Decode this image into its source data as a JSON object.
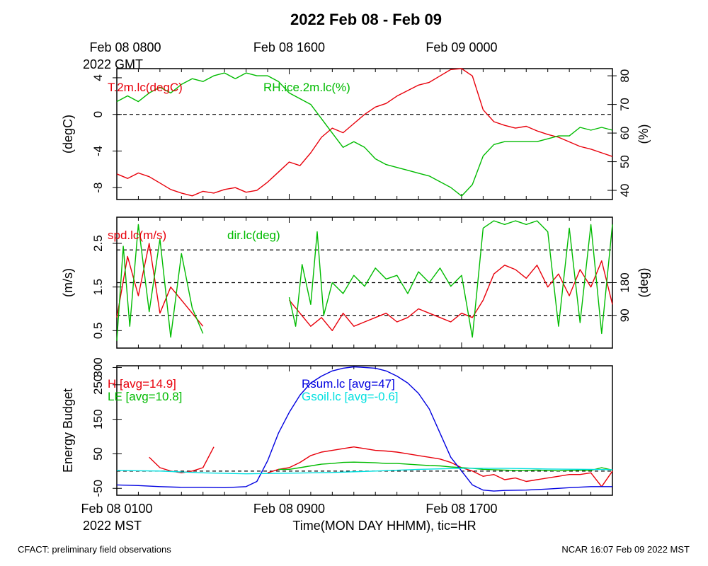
{
  "title": "2022 Feb 08 - Feb 09",
  "top_axis": {
    "ticks": [
      {
        "t": 0,
        "label": "Feb 08 0800"
      },
      {
        "t": 8,
        "label": "Feb 08 1600"
      },
      {
        "t": 16,
        "label": "Feb 09 0000"
      }
    ],
    "zone": "2022 GMT"
  },
  "bottom_axis": {
    "ticks": [
      {
        "t": 0,
        "label": "Feb 08 0100"
      },
      {
        "t": 8,
        "label": "Feb 08 0900"
      },
      {
        "t": 16,
        "label": "Feb 08 1700"
      }
    ],
    "zone": "2022 MST",
    "xlabel": "Time(MON DAY HHMM), tic=HR"
  },
  "footer": {
    "left": "CFACT: preliminary field observations",
    "right": "NCAR 16:07 Feb 09 2022 MST"
  },
  "colors": {
    "red": "#e8000b",
    "green": "#00bb00",
    "blue": "#0000e0",
    "cyan": "#00e0e0"
  },
  "chart_data": [
    {
      "type": "line",
      "id": "temp_rh",
      "ylabel": "(degC)",
      "ylabel_right": "(%)",
      "ylim": [
        -9.3,
        5.0
      ],
      "ylim_right": [
        36.8,
        82.5
      ],
      "yticks": [
        -8,
        -4,
        0,
        4
      ],
      "yticks_right": [
        40,
        50,
        60,
        70,
        80
      ],
      "hlines": [
        0
      ],
      "series": [
        {
          "name": "T.2m.lc(degC)",
          "axis": "left",
          "color": "red",
          "x": [
            0,
            0.5,
            1,
            1.5,
            2,
            2.5,
            3,
            3.5,
            4,
            4.5,
            5,
            5.5,
            6,
            6.5,
            7,
            7.5,
            8,
            8.5,
            9,
            9.5,
            10,
            10.5,
            11,
            11.5,
            12,
            12.5,
            13,
            13.5,
            14,
            14.5,
            15,
            15.5,
            16,
            16.5,
            17,
            17.5,
            18,
            18.5,
            19,
            19.5,
            20,
            20.5,
            21,
            21.5,
            22,
            22.5,
            23
          ],
          "y": [
            -6.5,
            -7.0,
            -6.4,
            -6.8,
            -7.5,
            -8.2,
            -8.6,
            -8.9,
            -8.4,
            -8.6,
            -8.2,
            -8.0,
            -8.5,
            -8.3,
            -7.4,
            -6.3,
            -5.2,
            -5.6,
            -4.2,
            -2.5,
            -1.5,
            -2.0,
            -1.0,
            0.0,
            0.8,
            1.2,
            2.0,
            2.6,
            3.2,
            3.5,
            4.2,
            4.9,
            5.0,
            4.2,
            0.5,
            -0.8,
            -1.2,
            -1.5,
            -1.3,
            -1.8,
            -2.2,
            -2.5,
            -3.0,
            -3.5,
            -3.8,
            -4.2,
            -4.6
          ]
        },
        {
          "name": "RH.ice.2m.lc(%)",
          "axis": "right",
          "color": "green",
          "x": [
            0,
            0.5,
            1,
            1.5,
            2,
            2.5,
            3,
            3.5,
            4,
            4.5,
            5,
            5.5,
            6,
            6.5,
            7,
            7.5,
            8,
            8.5,
            9,
            9.5,
            10,
            10.5,
            11,
            11.5,
            12,
            12.5,
            13,
            13.5,
            14,
            14.5,
            15,
            15.5,
            16,
            16.5,
            17,
            17.5,
            18,
            18.5,
            19,
            19.5,
            20,
            20.5,
            21,
            21.5,
            22,
            22.5,
            23
          ],
          "y": [
            71,
            73,
            71,
            74,
            76,
            74,
            77,
            79,
            78,
            80,
            81,
            79,
            81,
            80,
            80,
            78,
            74,
            72,
            70,
            65,
            60,
            55,
            57,
            55,
            51,
            49,
            48,
            47,
            46,
            45,
            43,
            41,
            38,
            42,
            52,
            56,
            57,
            57,
            57,
            57,
            58,
            59,
            59,
            62,
            61,
            62,
            61
          ]
        }
      ]
    },
    {
      "type": "line",
      "id": "wind",
      "ylabel": "(m/s)",
      "ylabel_right": "(deg)",
      "ylim": [
        0.1,
        3.1
      ],
      "ylim_right": [
        0,
        360
      ],
      "yticks": [
        0.5,
        1.5,
        2.5
      ],
      "yticks_right": [
        90,
        180
      ],
      "hlines": [
        0.85,
        1.6,
        2.35
      ],
      "series": [
        {
          "name": "spd.lc(m/s)",
          "axis": "left",
          "color": "red",
          "x": [
            0,
            0.5,
            1,
            1.5,
            2,
            2.5,
            3,
            3.5,
            4,
            null,
            8,
            8.5,
            9,
            9.5,
            10,
            10.5,
            11,
            11.5,
            12,
            12.5,
            13,
            13.5,
            14,
            14.5,
            15,
            15.5,
            16,
            16.5,
            17,
            17.5,
            18,
            18.5,
            19,
            19.5,
            20,
            20.5,
            21,
            21.5,
            22,
            22.5,
            23
          ],
          "y": [
            0.8,
            2.2,
            1.3,
            2.5,
            0.9,
            1.5,
            1.2,
            0.9,
            0.6,
            null,
            1.2,
            0.9,
            0.6,
            0.8,
            0.5,
            0.9,
            0.6,
            0.7,
            0.8,
            0.9,
            0.7,
            0.8,
            1.0,
            0.9,
            0.8,
            0.7,
            0.9,
            0.8,
            1.2,
            1.8,
            2.0,
            1.9,
            1.7,
            2.0,
            1.5,
            1.8,
            1.3,
            1.9,
            1.5,
            2.1,
            1.1
          ]
        },
        {
          "name": "dir.lc(deg)",
          "axis": "right",
          "color": "green",
          "x": [
            0,
            0.3,
            0.6,
            1,
            1.5,
            2,
            2.5,
            3,
            3.5,
            4,
            null,
            8,
            8.3,
            8.6,
            9,
            9.3,
            9.6,
            10,
            10.5,
            11,
            11.5,
            12,
            12.5,
            13,
            13.5,
            14,
            14.5,
            15,
            15.5,
            16,
            16.5,
            17,
            17.5,
            18,
            18.5,
            19,
            19.5,
            20,
            20.5,
            21,
            21.5,
            22,
            22.5,
            23
          ],
          "y": [
            20,
            280,
            60,
            340,
            100,
            300,
            30,
            260,
            110,
            40,
            null,
            140,
            60,
            230,
            120,
            320,
            90,
            180,
            150,
            200,
            170,
            220,
            190,
            200,
            150,
            210,
            180,
            220,
            170,
            200,
            30,
            330,
            350,
            340,
            350,
            340,
            350,
            320,
            60,
            330,
            70,
            340,
            40,
            340
          ]
        }
      ]
    },
    {
      "type": "line",
      "id": "energy",
      "ylabel": "Energy Budget",
      "ylim": [
        -70,
        305
      ],
      "yticks": [
        -50,
        50,
        150,
        250,
        300
      ],
      "hlines": [
        0
      ],
      "series": [
        {
          "name": "H",
          "label": "H [avg=14.9]",
          "color": "red",
          "x": [
            1.5,
            2,
            2.5,
            3,
            3.5,
            4,
            4.5,
            null,
            7,
            7.5,
            8,
            8.5,
            9,
            9.5,
            10,
            10.5,
            11,
            11.5,
            12,
            12.5,
            13,
            13.5,
            14,
            14.5,
            15,
            15.5,
            16,
            16.5,
            17,
            17.5,
            18,
            18.5,
            19,
            19.5,
            20,
            20.5,
            21,
            21.5,
            22,
            22.5,
            23
          ],
          "y": [
            40,
            10,
            0,
            -5,
            0,
            10,
            70,
            null,
            -5,
            5,
            10,
            25,
            45,
            55,
            60,
            65,
            70,
            65,
            60,
            58,
            55,
            50,
            45,
            40,
            35,
            25,
            10,
            0,
            -15,
            -10,
            -25,
            -20,
            -30,
            -25,
            -20,
            -15,
            -10,
            -10,
            -5,
            -45,
            0
          ]
        },
        {
          "name": "LE",
          "label": "LE [avg=10.8]",
          "color": "green",
          "x": [
            7.5,
            8,
            8.5,
            9,
            9.5,
            10,
            10.5,
            11,
            11.5,
            12,
            12.5,
            13,
            13.5,
            14,
            14.5,
            15,
            15.5,
            16,
            16.5,
            17,
            17.5,
            18,
            18.5,
            19,
            19.5,
            20,
            20.5,
            21,
            21.5,
            22,
            22.5,
            23
          ],
          "y": [
            5,
            5,
            10,
            15,
            20,
            22,
            25,
            26,
            25,
            24,
            22,
            22,
            20,
            18,
            16,
            15,
            12,
            10,
            8,
            5,
            4,
            3,
            2,
            2,
            3,
            2,
            1,
            2,
            3,
            2,
            10,
            3
          ]
        },
        {
          "name": "Rsum.lc",
          "label": "Rsum.lc [avg=47]",
          "color": "blue",
          "x": [
            0,
            1,
            2,
            3,
            4,
            5,
            6,
            6.5,
            7,
            7.5,
            8,
            8.5,
            9,
            9.5,
            10,
            10.5,
            11,
            11.5,
            12,
            12.5,
            13,
            13.5,
            14,
            14.5,
            15,
            15.5,
            16,
            16.5,
            17,
            17.5,
            18,
            19,
            20,
            21,
            22,
            23
          ],
          "y": [
            -40,
            -42,
            -45,
            -47,
            -47,
            -48,
            -45,
            -30,
            30,
            110,
            170,
            220,
            255,
            275,
            290,
            298,
            302,
            300,
            298,
            290,
            275,
            255,
            225,
            180,
            110,
            40,
            0,
            -40,
            -55,
            -58,
            -56,
            -55,
            -52,
            -48,
            -45,
            -45
          ]
        },
        {
          "name": "Gsoil.lc",
          "label": "Gsoil.lc [avg=-0.6]",
          "color": "cyan",
          "x": [
            0,
            2,
            4,
            6,
            8,
            10,
            12,
            14,
            16,
            18,
            20,
            22,
            23
          ],
          "y": [
            2,
            0,
            -5,
            -8,
            -6,
            -4,
            0,
            5,
            8,
            8,
            6,
            5,
            4
          ]
        }
      ]
    }
  ]
}
